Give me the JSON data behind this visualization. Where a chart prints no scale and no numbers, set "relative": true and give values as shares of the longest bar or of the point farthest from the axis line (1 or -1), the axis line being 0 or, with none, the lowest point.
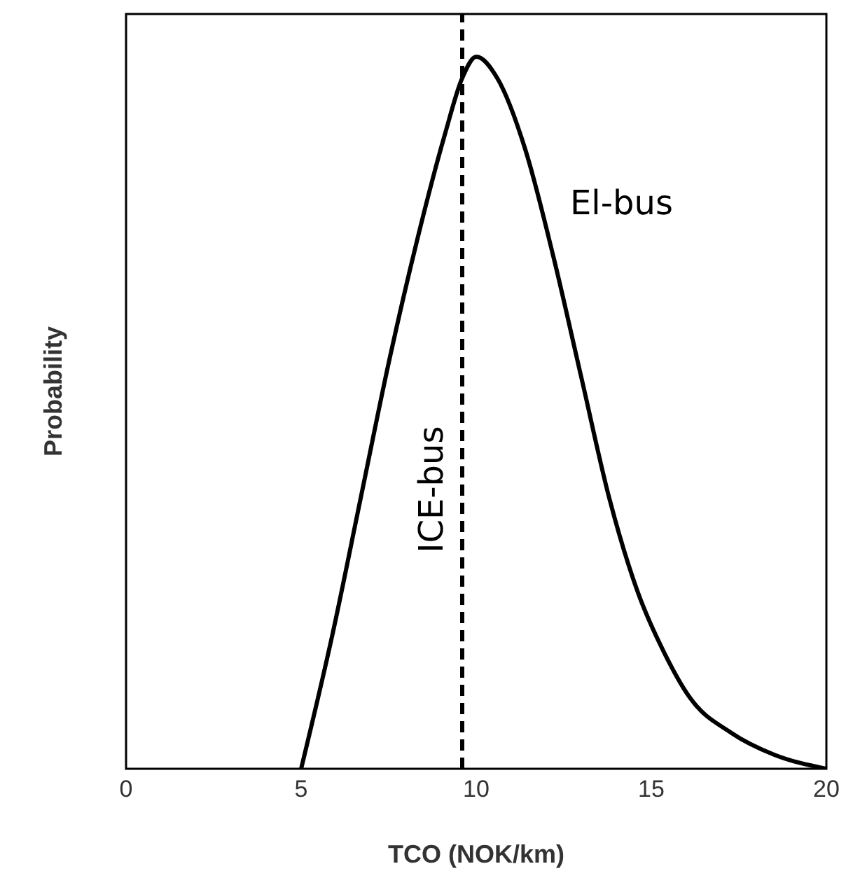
{
  "chart_data": {
    "type": "line",
    "xlabel": "TCO (NOK/km)",
    "ylabel": "Probability",
    "relative": true,
    "xlim": [
      0,
      20
    ],
    "xticks": [
      0,
      5,
      10,
      15,
      20
    ],
    "marker": "none",
    "line_style": "solid",
    "series": [
      {
        "name": "El-bus",
        "color": "#000000",
        "x": [
          5.0,
          5.9,
          6.7,
          7.5,
          8.3,
          9.1,
          9.6,
          10.0,
          10.6,
          11.4,
          12.2,
          13.0,
          13.8,
          14.6,
          15.4,
          16.1,
          17.3,
          18.5,
          20.0
        ],
        "values": [
          0,
          0.19,
          0.38,
          0.57,
          0.74,
          0.89,
          0.97,
          1,
          0.97,
          0.87,
          0.72,
          0.55,
          0.38,
          0.25,
          0.16,
          0.1,
          0.05,
          0.02,
          0
        ]
      }
    ],
    "ref_lines": [
      {
        "axis": "x",
        "value": 9.6,
        "label": "ICE-bus",
        "color": "#000000",
        "line_style": "dashed"
      }
    ]
  }
}
